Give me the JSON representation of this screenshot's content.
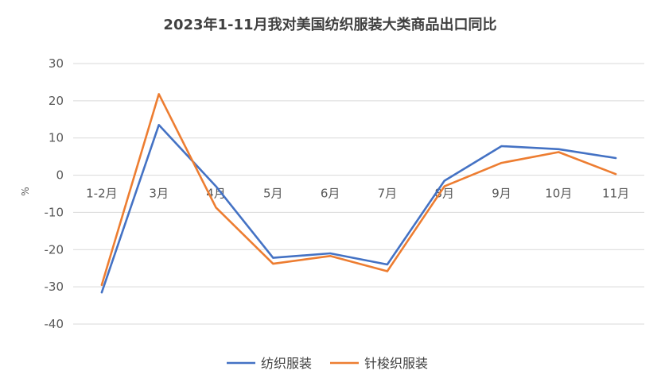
{
  "chart_data": {
    "type": "line",
    "title": "2023年1-11月我对美国纺织服装大类商品出口同比",
    "xlabel": "",
    "ylabel": "%",
    "categories": [
      "1-2月",
      "3月",
      "4月",
      "5月",
      "6月",
      "7月",
      "8月",
      "9月",
      "10月",
      "11月"
    ],
    "ylim": [
      -40,
      30
    ],
    "yticks": [
      30,
      20,
      10,
      0,
      -10,
      -20,
      -30,
      -40
    ],
    "grid": true,
    "legend_position": "bottom",
    "series": [
      {
        "name": "纺织服装",
        "color": "#4472C4",
        "values": [
          -31.5,
          13.5,
          -3.0,
          -22.2,
          -21.0,
          -24.0,
          -1.5,
          7.8,
          7.0,
          4.6
        ]
      },
      {
        "name": "针梭织服装",
        "color": "#ED7D31",
        "values": [
          -29.5,
          21.8,
          -8.7,
          -23.8,
          -21.7,
          -25.8,
          -3.0,
          3.3,
          6.2,
          0.3
        ]
      }
    ]
  }
}
